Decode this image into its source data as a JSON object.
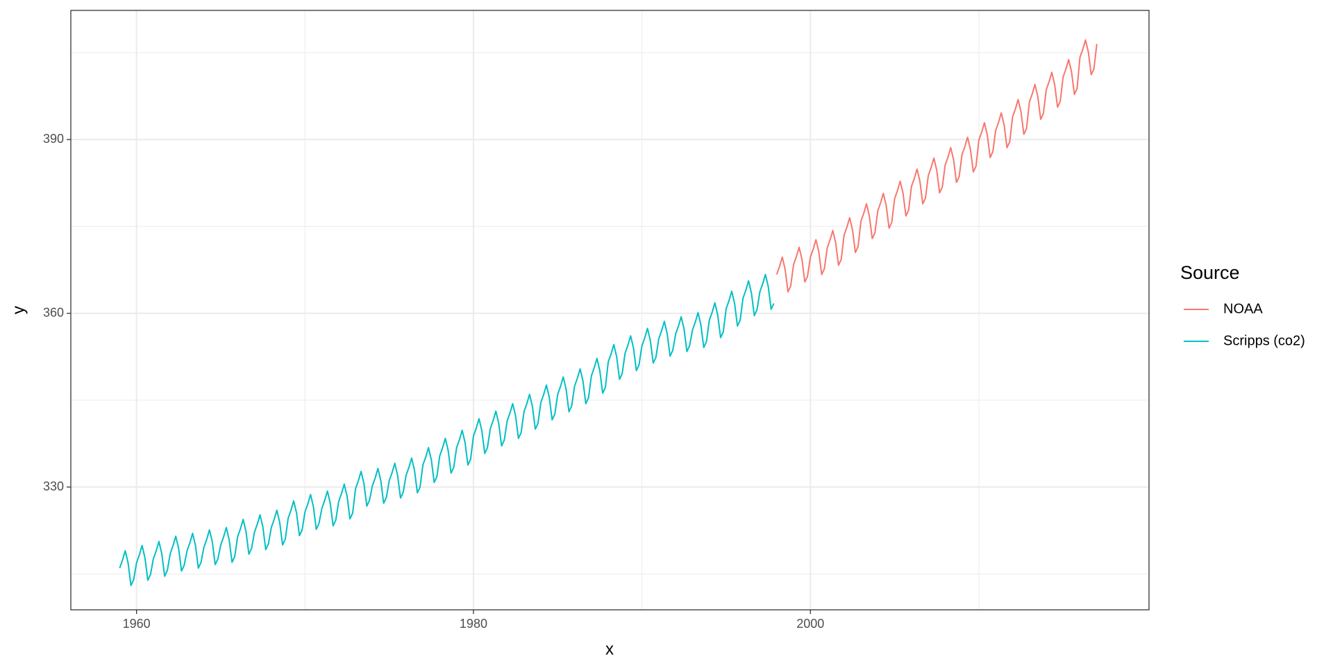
{
  "chart_data": {
    "type": "line",
    "x_label": "x",
    "y_label": "y",
    "legend_title": "Source",
    "legend_position": "right",
    "grid": true,
    "xlim": [
      1956.1,
      2020.1
    ],
    "xticks": [
      1960,
      1980,
      2000
    ],
    "xminor": [
      1970,
      1990,
      2010
    ],
    "ylim": [
      308.8,
      412.3
    ],
    "yticks": [
      330,
      360,
      390
    ],
    "yminor": [
      315,
      345,
      375,
      405
    ],
    "series": [
      {
        "name": "NOAA",
        "color": "#F8766D",
        "x": [
          1998,
          1998.17,
          1998.33,
          1998.5,
          1998.67,
          1998.83,
          1999,
          1999.17,
          1999.33,
          1999.5,
          1999.67,
          1999.83,
          2000,
          2000.17,
          2000.33,
          2000.5,
          2000.67,
          2000.83,
          2001,
          2001.17,
          2001.33,
          2001.5,
          2001.67,
          2001.83,
          2002,
          2002.17,
          2002.33,
          2002.5,
          2002.67,
          2002.83,
          2003,
          2003.17,
          2003.33,
          2003.5,
          2003.67,
          2003.83,
          2004,
          2004.17,
          2004.33,
          2004.5,
          2004.67,
          2004.83,
          2005,
          2005.17,
          2005.33,
          2005.5,
          2005.67,
          2005.83,
          2006,
          2006.17,
          2006.33,
          2006.5,
          2006.67,
          2006.83,
          2007,
          2007.17,
          2007.33,
          2007.5,
          2007.67,
          2007.83,
          2008,
          2008.17,
          2008.33,
          2008.5,
          2008.67,
          2008.83,
          2009,
          2009.17,
          2009.33,
          2009.5,
          2009.67,
          2009.83,
          2010,
          2010.17,
          2010.33,
          2010.5,
          2010.67,
          2010.83,
          2011,
          2011.17,
          2011.33,
          2011.5,
          2011.67,
          2011.83,
          2012,
          2012.17,
          2012.33,
          2012.5,
          2012.67,
          2012.83,
          2013,
          2013.17,
          2013.33,
          2013.5,
          2013.67,
          2013.83,
          2014,
          2014.17,
          2014.33,
          2014.5,
          2014.67,
          2014.83,
          2015,
          2015.17,
          2015.33,
          2015.5,
          2015.67,
          2015.83,
          2016,
          2016.17,
          2016.33,
          2016.5,
          2016.67,
          2016.83,
          2017
        ],
        "values": [
          366.7,
          368.1,
          369.7,
          367.6,
          363.7,
          364.7,
          368.4,
          369.8,
          371.4,
          369.3,
          365.4,
          366.4,
          369.7,
          371.1,
          372.7,
          370.6,
          366.7,
          367.7,
          371.3,
          372.7,
          374.3,
          372.2,
          368.3,
          369.3,
          373.5,
          374.9,
          376.5,
          374.4,
          370.5,
          371.5,
          375.9,
          377.3,
          378.9,
          376.8,
          372.9,
          373.9,
          377.7,
          379.1,
          380.7,
          378.6,
          374.7,
          375.7,
          379.8,
          381.2,
          382.8,
          380.7,
          376.8,
          377.8,
          381.9,
          383.3,
          384.9,
          382.8,
          378.9,
          379.9,
          383.8,
          385.2,
          386.8,
          384.7,
          380.8,
          381.8,
          385.6,
          387.0,
          388.6,
          386.5,
          382.6,
          383.6,
          387.4,
          388.8,
          390.4,
          388.3,
          384.4,
          385.4,
          389.9,
          391.3,
          392.9,
          390.8,
          386.9,
          387.9,
          391.6,
          393.0,
          394.6,
          392.5,
          388.6,
          389.6,
          393.9,
          395.3,
          396.9,
          394.8,
          390.9,
          391.9,
          396.5,
          397.9,
          399.5,
          397.4,
          393.5,
          394.5,
          398.6,
          400.0,
          401.6,
          399.5,
          395.6,
          396.6,
          400.8,
          402.2,
          403.8,
          401.7,
          397.8,
          398.8,
          404.2,
          405.6,
          407.2,
          405.1,
          401.2,
          402.2,
          406.5
        ]
      },
      {
        "name": "Scripps (co2)",
        "color": "#00BFC4",
        "x": [
          1959,
          1959.17,
          1959.33,
          1959.5,
          1959.67,
          1959.83,
          1960,
          1960.17,
          1960.33,
          1960.5,
          1960.67,
          1960.83,
          1961,
          1961.17,
          1961.33,
          1961.5,
          1961.67,
          1961.83,
          1962,
          1962.17,
          1962.33,
          1962.5,
          1962.67,
          1962.83,
          1963,
          1963.17,
          1963.33,
          1963.5,
          1963.67,
          1963.83,
          1964,
          1964.17,
          1964.33,
          1964.5,
          1964.67,
          1964.83,
          1965,
          1965.17,
          1965.33,
          1965.5,
          1965.67,
          1965.83,
          1966,
          1966.17,
          1966.33,
          1966.5,
          1966.67,
          1966.83,
          1967,
          1967.17,
          1967.33,
          1967.5,
          1967.67,
          1967.83,
          1968,
          1968.17,
          1968.33,
          1968.5,
          1968.67,
          1968.83,
          1969,
          1969.17,
          1969.33,
          1969.5,
          1969.67,
          1969.83,
          1970,
          1970.17,
          1970.33,
          1970.5,
          1970.67,
          1970.83,
          1971,
          1971.17,
          1971.33,
          1971.5,
          1971.67,
          1971.83,
          1972,
          1972.17,
          1972.33,
          1972.5,
          1972.67,
          1972.83,
          1973,
          1973.17,
          1973.33,
          1973.5,
          1973.67,
          1973.83,
          1974,
          1974.17,
          1974.33,
          1974.5,
          1974.67,
          1974.83,
          1975,
          1975.17,
          1975.33,
          1975.5,
          1975.67,
          1975.83,
          1976,
          1976.17,
          1976.33,
          1976.5,
          1976.67,
          1976.83,
          1977,
          1977.17,
          1977.33,
          1977.5,
          1977.67,
          1977.83,
          1978,
          1978.17,
          1978.33,
          1978.5,
          1978.67,
          1978.83,
          1979,
          1979.17,
          1979.33,
          1979.5,
          1979.67,
          1979.83,
          1980,
          1980.17,
          1980.33,
          1980.5,
          1980.67,
          1980.83,
          1981,
          1981.17,
          1981.33,
          1981.5,
          1981.67,
          1981.83,
          1982,
          1982.17,
          1982.33,
          1982.5,
          1982.67,
          1982.83,
          1983,
          1983.17,
          1983.33,
          1983.5,
          1983.67,
          1983.83,
          1984,
          1984.17,
          1984.33,
          1984.5,
          1984.67,
          1984.83,
          1985,
          1985.17,
          1985.33,
          1985.5,
          1985.67,
          1985.83,
          1986,
          1986.17,
          1986.33,
          1986.5,
          1986.67,
          1986.83,
          1987,
          1987.17,
          1987.33,
          1987.5,
          1987.67,
          1987.83,
          1988,
          1988.17,
          1988.33,
          1988.5,
          1988.67,
          1988.83,
          1989,
          1989.17,
          1989.33,
          1989.5,
          1989.67,
          1989.83,
          1990,
          1990.17,
          1990.33,
          1990.5,
          1990.67,
          1990.83,
          1991,
          1991.17,
          1991.33,
          1991.5,
          1991.67,
          1991.83,
          1992,
          1992.17,
          1992.33,
          1992.5,
          1992.67,
          1992.83,
          1993,
          1993.17,
          1993.33,
          1993.5,
          1993.67,
          1993.83,
          1994,
          1994.17,
          1994.33,
          1994.5,
          1994.67,
          1994.83,
          1995,
          1995.17,
          1995.33,
          1995.5,
          1995.67,
          1995.83,
          1996,
          1996.17,
          1996.33,
          1996.5,
          1996.67,
          1996.83,
          1997,
          1997.17,
          1997.33,
          1997.5,
          1997.67,
          1997.83
        ],
        "values": [
          316.0,
          317.4,
          319.0,
          316.9,
          313.0,
          314.0,
          316.9,
          318.3,
          319.9,
          317.8,
          313.9,
          314.9,
          317.6,
          319.0,
          320.6,
          318.5,
          314.6,
          315.6,
          318.5,
          319.9,
          321.5,
          319.4,
          315.5,
          316.5,
          319.0,
          320.4,
          322.0,
          319.9,
          316.0,
          317.0,
          319.6,
          321.0,
          322.6,
          320.5,
          316.6,
          317.6,
          320.0,
          321.4,
          323.0,
          320.9,
          317.0,
          318.0,
          321.4,
          322.8,
          324.4,
          322.3,
          318.4,
          319.4,
          322.2,
          323.6,
          325.2,
          323.1,
          319.2,
          320.2,
          323.0,
          324.4,
          326.0,
          323.9,
          320.0,
          321.0,
          324.6,
          326.0,
          327.6,
          325.5,
          321.6,
          322.6,
          325.7,
          327.1,
          328.7,
          326.6,
          322.7,
          323.7,
          326.3,
          327.7,
          329.3,
          327.2,
          323.3,
          324.3,
          327.5,
          328.9,
          330.5,
          328.4,
          324.5,
          325.5,
          329.7,
          331.1,
          332.7,
          330.6,
          326.7,
          327.7,
          330.2,
          331.6,
          333.2,
          331.1,
          327.2,
          328.2,
          331.1,
          332.5,
          334.1,
          332.0,
          328.1,
          329.1,
          332.0,
          333.4,
          335.0,
          332.9,
          329.0,
          330.0,
          333.8,
          335.2,
          336.8,
          334.7,
          330.8,
          331.8,
          335.4,
          336.8,
          338.4,
          336.3,
          332.4,
          333.4,
          336.8,
          338.2,
          339.8,
          337.7,
          333.8,
          334.8,
          338.8,
          340.2,
          341.8,
          339.7,
          335.8,
          336.8,
          340.1,
          341.5,
          343.1,
          341.0,
          337.1,
          338.1,
          341.4,
          342.8,
          344.4,
          342.3,
          338.4,
          339.4,
          343.0,
          344.4,
          346.0,
          343.9,
          340.0,
          341.0,
          344.6,
          346.0,
          347.6,
          345.5,
          341.6,
          342.6,
          346.0,
          347.4,
          349.0,
          346.9,
          343.0,
          344.0,
          347.4,
          348.8,
          350.4,
          348.3,
          344.4,
          345.4,
          349.2,
          350.6,
          352.2,
          350.1,
          346.2,
          347.2,
          351.6,
          353.0,
          354.6,
          352.5,
          348.6,
          349.6,
          353.1,
          354.5,
          356.1,
          354.0,
          350.1,
          351.1,
          354.4,
          355.8,
          357.4,
          355.3,
          351.4,
          352.4,
          355.6,
          357.0,
          358.6,
          356.5,
          352.6,
          353.6,
          356.4,
          357.8,
          359.4,
          357.3,
          353.4,
          354.4,
          357.1,
          358.5,
          360.1,
          358.0,
          354.1,
          355.1,
          358.8,
          360.2,
          361.8,
          359.7,
          355.8,
          356.8,
          360.8,
          362.2,
          363.8,
          361.7,
          357.8,
          358.8,
          362.6,
          364.0,
          365.6,
          363.5,
          359.6,
          360.6,
          363.7,
          365.1,
          366.7,
          364.6,
          360.7,
          361.7
        ]
      }
    ]
  }
}
